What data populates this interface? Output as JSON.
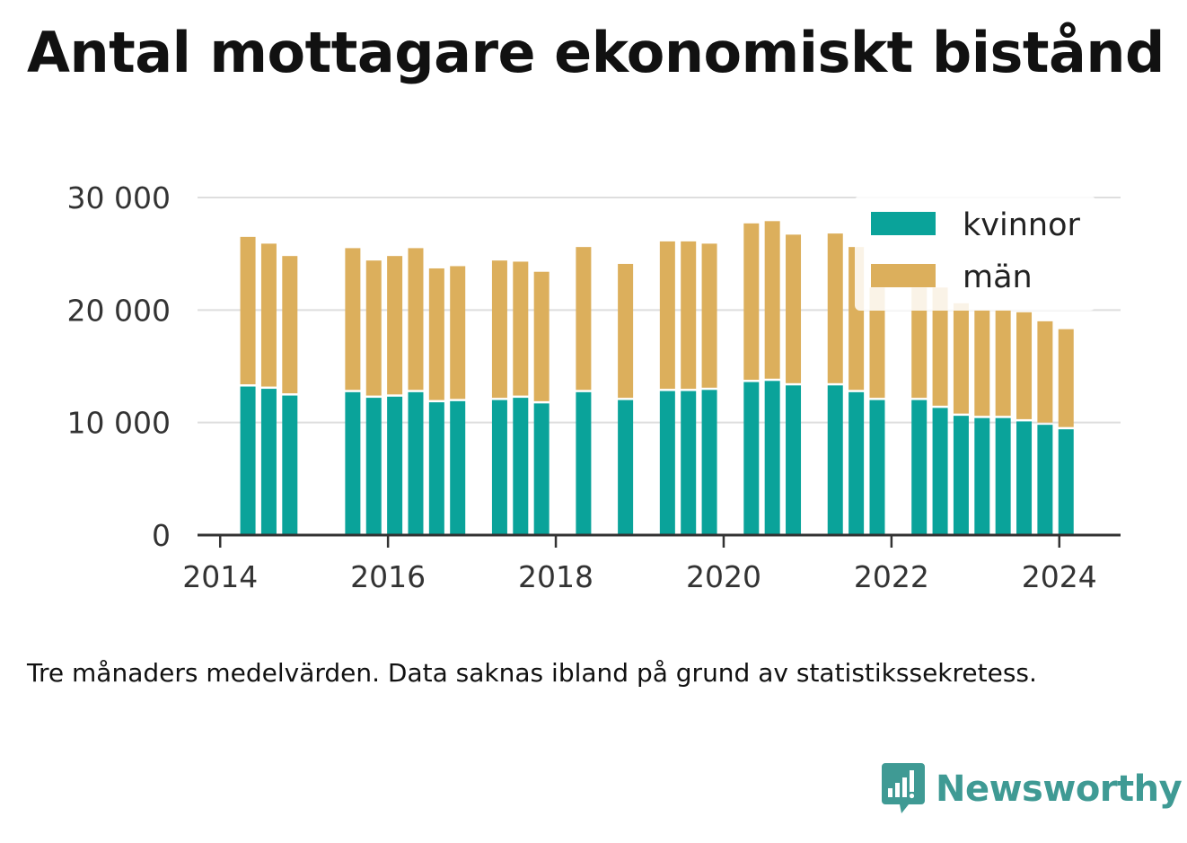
{
  "title": "Antal mottagare ekonomiskt bistånd",
  "note": "Tre månaders medelvärden. Data saknas ibland på grund av statistikssekretess.",
  "brand": {
    "name": "Newsworthy",
    "icon": "newsworthy-logo-icon"
  },
  "colors": {
    "kvinnor": "#0aa39a",
    "man": "#dcaf5c",
    "grid": "#dedede",
    "axis": "#333333"
  },
  "chart_data": {
    "type": "bar",
    "stacked": true,
    "title": "Antal mottagare ekonomiskt bistånd",
    "xlabel": "",
    "ylabel": "",
    "ylim": [
      0,
      30000
    ],
    "xlim": [
      2013.73,
      2024.73
    ],
    "yticks": [
      0,
      10000,
      20000,
      30000
    ],
    "ytick_labels": [
      "0",
      "10 000",
      "20 000",
      "30 000"
    ],
    "xticks": [
      2014,
      2016,
      2018,
      2020,
      2022,
      2024
    ],
    "xtick_labels": [
      "2014",
      "2016",
      "2018",
      "2020",
      "2022",
      "2024"
    ],
    "grid": true,
    "legend_position": "top-right",
    "x": [
      2014.33,
      2014.58,
      2014.83,
      2015.58,
      2015.83,
      2016.08,
      2016.33,
      2016.58,
      2016.83,
      2017.33,
      2017.58,
      2017.83,
      2018.33,
      2018.83,
      2019.33,
      2019.58,
      2019.83,
      2020.33,
      2020.58,
      2020.83,
      2021.33,
      2021.58,
      2021.83,
      2022.33,
      2022.58,
      2022.83,
      2023.08,
      2023.33,
      2023.58,
      2023.83,
      2024.08
    ],
    "series": [
      {
        "name": "kvinnor",
        "color": "#0aa39a",
        "values": [
          13200,
          13000,
          12400,
          12700,
          12200,
          12300,
          12700,
          11800,
          11900,
          12000,
          12200,
          11700,
          12700,
          12000,
          12800,
          12800,
          12900,
          13600,
          13700,
          13300,
          13300,
          12700,
          12000,
          12000,
          11300,
          10600,
          10400,
          10400,
          10100,
          9800,
          9400
        ]
      },
      {
        "name": "män",
        "color": "#dcaf5c",
        "values": [
          13300,
          12900,
          12400,
          12800,
          12200,
          12500,
          12800,
          11900,
          12000,
          12400,
          12100,
          11700,
          12900,
          12100,
          13300,
          13300,
          13000,
          14100,
          14200,
          13400,
          13500,
          12900,
          10000,
          10000,
          10700,
          10000,
          9600,
          9600,
          9700,
          9200,
          8900
        ]
      }
    ]
  }
}
